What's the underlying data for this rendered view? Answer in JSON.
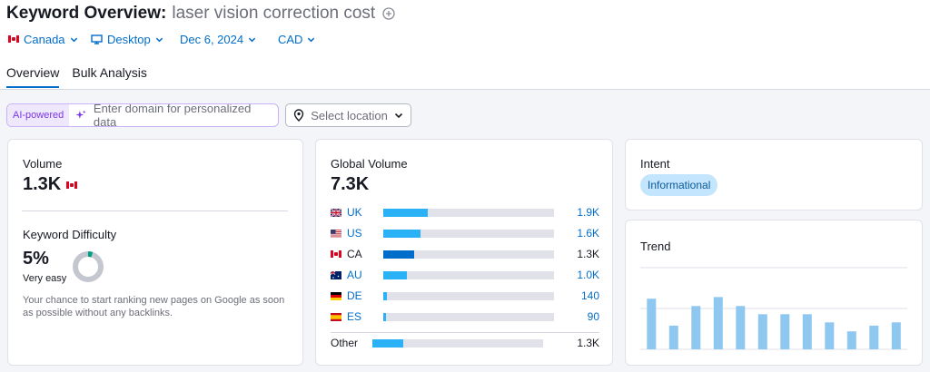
{
  "header": {
    "title_label": "Keyword Overview:",
    "keyword": "laser vision correction cost",
    "filters": [
      {
        "label": "Canada",
        "icon": "flag-canada-icon"
      },
      {
        "label": "Desktop",
        "icon": "desktop-icon"
      },
      {
        "label": "Dec 6, 2024",
        "icon": ""
      },
      {
        "label": "CAD",
        "icon": ""
      }
    ]
  },
  "tabs": [
    {
      "label": "Overview",
      "active": true
    },
    {
      "label": "Bulk Analysis",
      "active": false
    }
  ],
  "ai": {
    "badge": "AI-powered",
    "domain_placeholder": "Enter domain for personalized data",
    "location_placeholder": "Select location"
  },
  "volume": {
    "label": "Volume",
    "value": "1.3K"
  },
  "difficulty": {
    "label": "Keyword Difficulty",
    "value": "5%",
    "level": "Very easy",
    "percent": 5,
    "description": "Your chance to start ranking new pages on Google as soon as possible without any backlinks."
  },
  "global_volume": {
    "label": "Global Volume",
    "value": "7.3K",
    "rows": [
      {
        "code": "UK",
        "value": "1.9K",
        "fraction": 0.26
      },
      {
        "code": "US",
        "value": "1.6K",
        "fraction": 0.22
      },
      {
        "code": "CA",
        "value": "1.3K",
        "fraction": 0.18
      },
      {
        "code": "AU",
        "value": "1.0K",
        "fraction": 0.14
      },
      {
        "code": "DE",
        "value": "140",
        "fraction": 0.02
      },
      {
        "code": "ES",
        "value": "90",
        "fraction": 0.015
      }
    ],
    "other": {
      "label": "Other",
      "value": "1.3K",
      "fraction": 0.18
    }
  },
  "intent": {
    "label": "Intent",
    "value": "Informational"
  },
  "trend": {
    "label": "Trend",
    "values": [
      0.62,
      0.29,
      0.53,
      0.64,
      0.53,
      0.43,
      0.43,
      0.43,
      0.33,
      0.22,
      0.29,
      0.33
    ]
  },
  "colors": {
    "accent": "#006dca",
    "bar_light": "#2bb1f5",
    "trend_bar": "#8ec8f0",
    "difficulty_green": "#009f81"
  }
}
